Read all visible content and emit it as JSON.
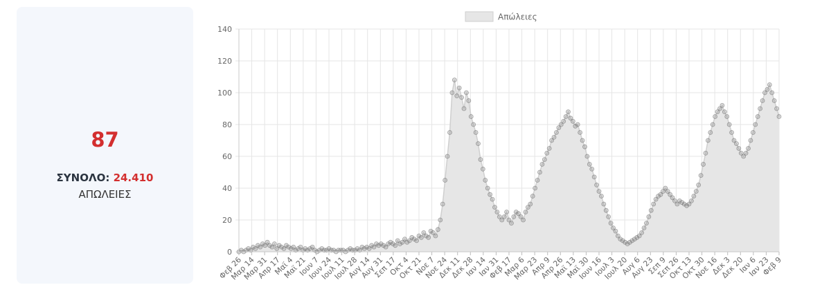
{
  "summary": {
    "value": "87",
    "total_label": "ΣΥΝΟΛΟ:",
    "total_value": "24.410",
    "caption": "ΑΠΩΛΕΙΕΣ"
  },
  "colors": {
    "fill": "#e6e6e6",
    "line": "#cfcfcf",
    "point_fill": "rgba(150,150,150,0.35)",
    "point_stroke": "rgba(90,90,90,0.5)",
    "grid": "#e5e5e5",
    "accent": "#d32f2f"
  },
  "chart_data": {
    "type": "area",
    "series": [
      {
        "name": "Απώλειες"
      }
    ],
    "legend_position": "top",
    "grid": true,
    "ylim": [
      0,
      140
    ],
    "yticks": [
      0,
      20,
      40,
      60,
      80,
      100,
      120,
      140
    ],
    "x_tick_labels": [
      "Φεβ 26",
      "Μαρ 14",
      "Μαρ 31",
      "Απρ 17",
      "Μαϊ 4",
      "Μαϊ 21",
      "Ιουν 7",
      "Ιουν 24",
      "Ιουλ 11",
      "Ιουλ 28",
      "Αυγ 14",
      "Αυγ 31",
      "Σεπ 17",
      "Οκτ 4",
      "Οκτ 21",
      "Νοε 7",
      "Νοε 24",
      "Δεκ 11",
      "Δεκ 28",
      "Ιαν 14",
      "Ιαν 31",
      "Φεβ 17",
      "Μαρ 6",
      "Μαρ 23",
      "Απρ 9",
      "Απρ 26",
      "Μαϊ 13",
      "Μαϊ 30",
      "Ιουν 16",
      "Ιουλ 3",
      "Ιουλ 20",
      "Αυγ 6",
      "Αυγ 23",
      "Σεπ 9",
      "Σεπ 26",
      "Οκτ 13",
      "Οκτ 30",
      "Νοε 16",
      "Δεκ 3",
      "Δεκ 20",
      "Ιαν 6",
      "Ιαν 23",
      "Φεβ 9"
    ],
    "values": [
      0,
      1,
      0,
      1,
      2,
      1,
      3,
      2,
      4,
      3,
      5,
      4,
      6,
      4,
      3,
      5,
      2,
      4,
      3,
      2,
      4,
      3,
      2,
      3,
      1,
      2,
      3,
      1,
      2,
      1,
      2,
      3,
      1,
      0,
      1,
      2,
      1,
      1,
      2,
      1,
      1,
      0,
      1,
      1,
      1,
      0,
      1,
      2,
      1,
      1,
      2,
      1,
      3,
      2,
      3,
      2,
      4,
      3,
      5,
      4,
      5,
      4,
      3,
      5,
      6,
      5,
      4,
      7,
      5,
      6,
      8,
      6,
      7,
      9,
      8,
      7,
      10,
      9,
      12,
      10,
      9,
      13,
      12,
      10,
      14,
      20,
      30,
      45,
      60,
      75,
      100,
      108,
      98,
      103,
      97,
      90,
      100,
      95,
      85,
      80,
      75,
      68,
      58,
      52,
      45,
      40,
      36,
      33,
      28,
      25,
      22,
      20,
      22,
      25,
      20,
      18,
      22,
      25,
      24,
      22,
      20,
      25,
      28,
      30,
      35,
      40,
      45,
      50,
      55,
      58,
      62,
      65,
      70,
      72,
      75,
      78,
      80,
      82,
      85,
      88,
      84,
      82,
      79,
      80,
      75,
      70,
      66,
      60,
      55,
      52,
      47,
      42,
      38,
      35,
      30,
      26,
      22,
      18,
      15,
      13,
      10,
      8,
      7,
      6,
      5,
      6,
      7,
      8,
      9,
      10,
      12,
      15,
      18,
      22,
      26,
      30,
      33,
      35,
      36,
      38,
      40,
      38,
      36,
      34,
      32,
      30,
      32,
      31,
      30,
      29,
      30,
      32,
      35,
      38,
      42,
      48,
      55,
      62,
      70,
      75,
      80,
      85,
      88,
      90,
      92,
      88,
      85,
      80,
      75,
      70,
      68,
      65,
      62,
      60,
      62,
      65,
      70,
      75,
      80,
      85,
      90,
      95,
      100,
      102,
      105,
      100,
      95,
      90,
      85
    ]
  }
}
